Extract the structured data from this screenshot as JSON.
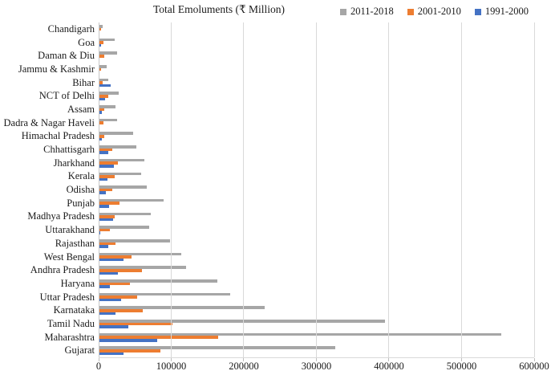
{
  "chart_data": {
    "type": "bar",
    "orientation": "horizontal",
    "title": "Total Emoluments (₹ Million)",
    "xlabel": "",
    "ylabel": "",
    "xlim": [
      0,
      600000
    ],
    "x_ticks": [
      0,
      100000,
      200000,
      300000,
      400000,
      500000,
      600000
    ],
    "grid": true,
    "legend_position": "top-right",
    "categories": [
      "Chandigarh",
      "Goa",
      "Daman & Diu",
      "Jammu & Kashmir",
      "Bihar",
      "NCT of Delhi",
      "Assam",
      "Dadra & Nagar Haveli",
      "Himachal Pradesh",
      "Chhattisgarh",
      "Jharkhand",
      "Kerala",
      "Odisha",
      "Punjab",
      "Madhya Pradesh",
      "Uttarakhand",
      "Rajasthan",
      "West Bengal",
      "Andhra Pradesh",
      "Haryana",
      "Uttar Pradesh",
      "Karnataka",
      "Tamil Nadu",
      "Maharashtra",
      "Gujarat"
    ],
    "series": [
      {
        "name": "2011-2018",
        "color": "#A6A6A6",
        "values": [
          5500,
          22000,
          25000,
          11000,
          13600,
          28000,
          23500,
          25000,
          47000,
          51500,
          63000,
          59000,
          66000,
          90000,
          72000,
          70000,
          98000,
          114000,
          120000,
          163000,
          181000,
          229000,
          395000,
          555000,
          326000
        ]
      },
      {
        "name": "2001-2010",
        "color": "#ED7D31",
        "values": [
          3000,
          7000,
          7700,
          3300,
          5000,
          13500,
          7700,
          7000,
          8000,
          19000,
          27000,
          22000,
          19000,
          29000,
          22000,
          15500,
          23500,
          45000,
          60000,
          43000,
          53000,
          61000,
          102000,
          165000,
          85000
        ]
      },
      {
        "name": "1991-2000",
        "color": "#4472C4",
        "values": [
          400,
          3700,
          500,
          300,
          17000,
          8800,
          4800,
          400,
          4000,
          13000,
          21000,
          12000,
          10000,
          14000,
          19500,
          2200,
          13000,
          34000,
          27000,
          15000,
          31000,
          23500,
          40500,
          81000,
          34000
        ]
      }
    ],
    "colors": {
      "gridline": "#D9D9D9",
      "axis": "#C6C6C6",
      "text": "#1A1A1A"
    }
  }
}
